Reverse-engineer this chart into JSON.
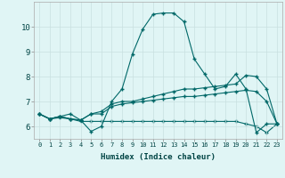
{
  "xlabel": "Humidex (Indice chaleur)",
  "bg_color": "#e0f5f5",
  "grid_color": "#c8e0e0",
  "line_color": "#006868",
  "xlim": [
    -0.5,
    23.5
  ],
  "ylim": [
    5.5,
    11.0
  ],
  "xticks": [
    0,
    1,
    2,
    3,
    4,
    5,
    6,
    7,
    8,
    9,
    10,
    11,
    12,
    13,
    14,
    15,
    16,
    17,
    18,
    19,
    20,
    21,
    22,
    23
  ],
  "yticks": [
    6,
    7,
    8,
    9,
    10
  ],
  "series1_x": [
    0,
    1,
    2,
    3,
    4,
    5,
    6,
    7,
    8,
    9,
    10,
    11,
    12,
    13,
    14,
    15,
    16,
    17,
    18,
    19,
    20,
    21,
    22,
    23
  ],
  "series1_y": [
    6.5,
    6.3,
    6.4,
    6.5,
    6.25,
    5.8,
    6.0,
    7.0,
    7.5,
    8.9,
    9.9,
    10.5,
    10.55,
    10.55,
    10.2,
    8.7,
    8.1,
    7.5,
    7.6,
    8.1,
    7.5,
    5.75,
    6.1,
    6.1
  ],
  "series2_x": [
    0,
    1,
    2,
    3,
    4,
    5,
    6,
    7,
    8,
    9,
    10,
    11,
    12,
    13,
    14,
    15,
    16,
    17,
    18,
    19,
    20,
    21,
    22,
    23
  ],
  "series2_y": [
    6.5,
    6.3,
    6.4,
    6.3,
    6.25,
    6.5,
    6.6,
    6.9,
    7.0,
    7.0,
    7.1,
    7.2,
    7.3,
    7.4,
    7.5,
    7.5,
    7.55,
    7.6,
    7.65,
    7.7,
    8.05,
    8.0,
    7.5,
    6.1
  ],
  "series3_x": [
    0,
    1,
    2,
    3,
    4,
    5,
    6,
    7,
    8,
    9,
    10,
    11,
    12,
    13,
    14,
    15,
    16,
    17,
    18,
    19,
    20,
    21,
    22,
    23
  ],
  "series3_y": [
    6.5,
    6.3,
    6.4,
    6.3,
    6.25,
    6.5,
    6.5,
    6.8,
    6.9,
    6.95,
    7.0,
    7.05,
    7.1,
    7.15,
    7.2,
    7.2,
    7.25,
    7.3,
    7.35,
    7.4,
    7.45,
    7.4,
    7.0,
    6.1
  ],
  "series4_x": [
    0,
    1,
    2,
    3,
    4,
    5,
    6,
    7,
    8,
    9,
    10,
    11,
    12,
    13,
    14,
    15,
    16,
    17,
    18,
    19,
    20,
    21,
    22,
    23
  ],
  "series4_y": [
    6.5,
    6.3,
    6.35,
    6.3,
    6.2,
    6.2,
    6.2,
    6.2,
    6.2,
    6.2,
    6.2,
    6.2,
    6.2,
    6.2,
    6.2,
    6.2,
    6.2,
    6.2,
    6.2,
    6.2,
    6.1,
    6.0,
    5.75,
    6.1
  ]
}
